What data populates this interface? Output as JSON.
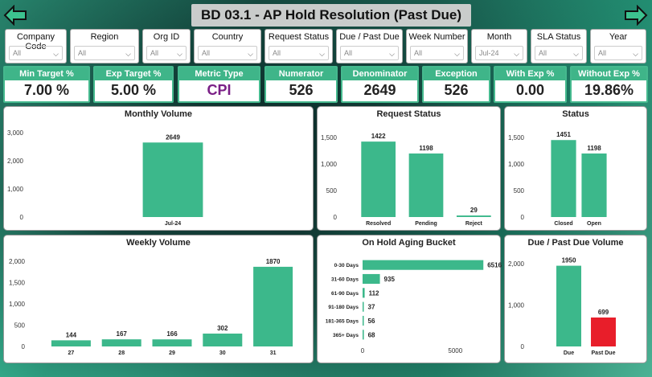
{
  "header": {
    "title": "BD 03.1 - AP Hold Resolution (Past Due)",
    "back_icon": "arrow-left-icon",
    "forward_icon": "arrow-right-icon"
  },
  "slicers": [
    {
      "label": "Company Code",
      "value": "All"
    },
    {
      "label": "Region",
      "value": "All"
    },
    {
      "label": "Org ID",
      "value": "All"
    },
    {
      "label": "Country",
      "value": "All"
    },
    {
      "label": "Request Status",
      "value": "All"
    },
    {
      "label": "Due / Past Due",
      "value": "All"
    },
    {
      "label": "Week Number",
      "value": "All"
    },
    {
      "label": "Month",
      "value": "Jul-24"
    },
    {
      "label": "SLA Status",
      "value": "All"
    },
    {
      "label": "Year",
      "value": "All"
    }
  ],
  "cards": [
    {
      "label": "Min Target %",
      "value": "7.00 %"
    },
    {
      "label": "Exp Target %",
      "value": "5.00 %"
    },
    {
      "label": "Metric Type",
      "value": "CPI"
    },
    {
      "label": "Numerator",
      "value": "526"
    },
    {
      "label": "Denominator",
      "value": "2649"
    },
    {
      "label": "Exception",
      "value": "526"
    },
    {
      "label": "With Exp %",
      "value": "0.00"
    },
    {
      "label": "Without Exp %",
      "value": "19.86%"
    }
  ],
  "colors": {
    "bar": "#3cb88b",
    "past_due": "#e81e2a",
    "accent": "#3fb589",
    "metric": "#7a1f86"
  },
  "chart_data": [
    {
      "id": "monthly",
      "type": "bar",
      "title": "Monthly Volume",
      "categories": [
        "Jul-24"
      ],
      "values": [
        2649
      ],
      "ylim": [
        0,
        3000
      ],
      "yticks": [
        "0",
        "1,000",
        "2,000",
        "3,000"
      ],
      "ytick_values": [
        0,
        1000,
        2000,
        3000
      ]
    },
    {
      "id": "request_status",
      "type": "bar",
      "title": "Request Status",
      "categories": [
        "Resolved",
        "Pending",
        "Reject"
      ],
      "values": [
        1422,
        1198,
        29
      ],
      "ylim": [
        0,
        1500
      ],
      "yticks": [
        "0",
        "500",
        "1,000",
        "1,500"
      ],
      "ytick_values": [
        0,
        500,
        1000,
        1500
      ]
    },
    {
      "id": "status",
      "type": "bar",
      "title": "Status",
      "categories": [
        "Closed",
        "Open"
      ],
      "values": [
        1451,
        1198
      ],
      "ylim": [
        0,
        1500
      ],
      "yticks": [
        "0",
        "500",
        "1,000",
        "1,500"
      ],
      "ytick_values": [
        0,
        500,
        1000,
        1500
      ]
    },
    {
      "id": "weekly",
      "type": "bar",
      "title": "Weekly Volume",
      "categories": [
        "27",
        "28",
        "29",
        "30",
        "31"
      ],
      "values": [
        144,
        167,
        166,
        302,
        1870
      ],
      "ylim": [
        0,
        2000
      ],
      "yticks": [
        "0",
        "500",
        "1,000",
        "1,500",
        "2,000"
      ],
      "ytick_values": [
        0,
        500,
        1000,
        1500,
        2000
      ]
    },
    {
      "id": "aging",
      "type": "bar",
      "orientation": "horizontal",
      "title": "On Hold Aging Bucket",
      "categories": [
        "0-30 Days",
        "31-60 Days",
        "61-90 Days",
        "91-180 Days",
        "181-365 Days",
        "365+ Days"
      ],
      "values": [
        6516,
        935,
        112,
        37,
        56,
        68
      ],
      "xlim": [
        0,
        7200
      ],
      "xticks": [
        "0",
        "5000"
      ],
      "xtick_values": [
        0,
        5000
      ]
    },
    {
      "id": "due",
      "type": "bar",
      "title": "Due / Past Due Volume",
      "categories": [
        "Due",
        "Past Due"
      ],
      "values": [
        1950,
        699
      ],
      "ylim": [
        0,
        2000
      ],
      "yticks": [
        "0",
        "1,000",
        "2,000"
      ],
      "ytick_values": [
        0,
        1000,
        2000
      ]
    }
  ]
}
